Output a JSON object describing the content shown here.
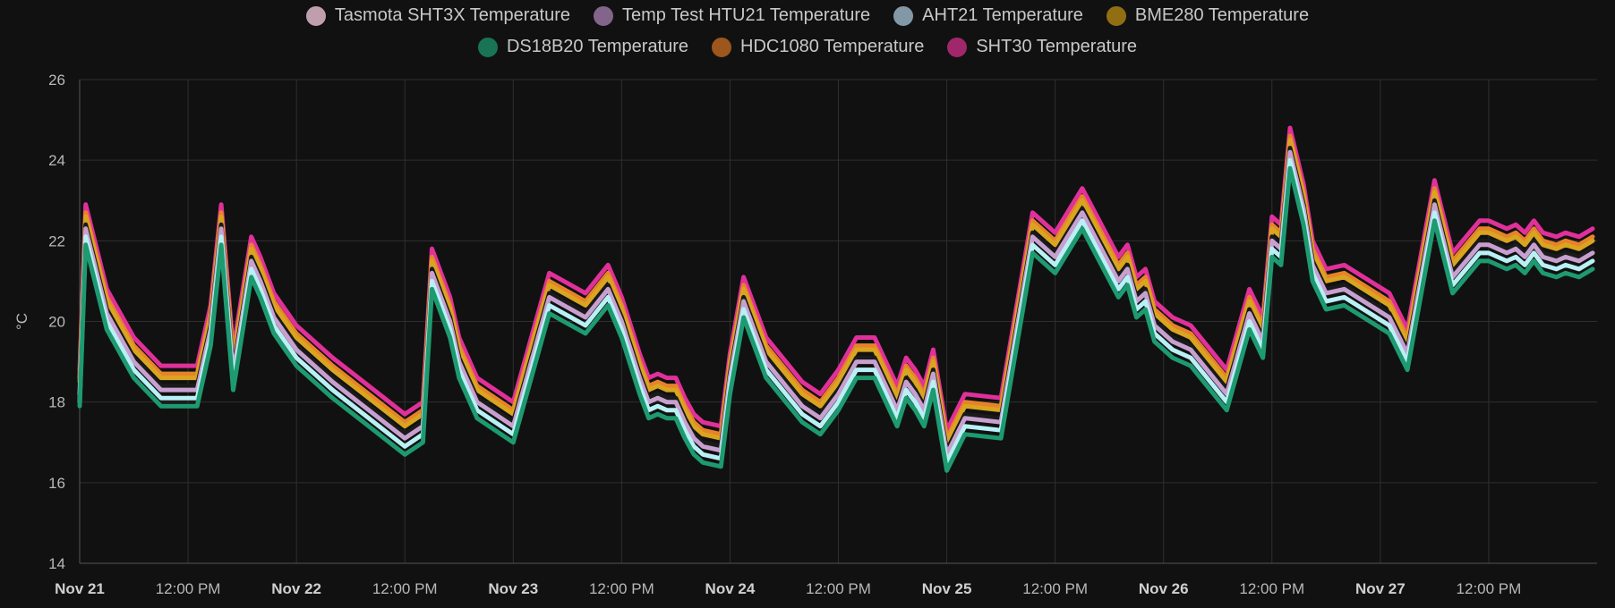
{
  "legend": [
    {
      "name": "Tasmota SHT3X Temperature",
      "color": "#c9a7b6"
    },
    {
      "name": "Temp Test HTU21 Temperature",
      "color": "#8a6a92"
    },
    {
      "name": "AHT21 Temperature",
      "color": "#8aa0b0"
    },
    {
      "name": "BME280 Temperature",
      "color": "#9a7414"
    },
    {
      "name": "DS18B20 Temperature",
      "color": "#1a7a5a"
    },
    {
      "name": "HDC1080 Temperature",
      "color": "#a55a1e"
    },
    {
      "name": "SHT30 Temperature",
      "color": "#a82a70"
    }
  ],
  "chart_data": {
    "type": "line",
    "title": "",
    "xlabel": "",
    "ylabel": "°C",
    "ylim": [
      14,
      26
    ],
    "yticks": [
      "26",
      "24",
      "22",
      "20",
      "18",
      "16",
      "14"
    ],
    "xlim": [
      "2023-11-21T00:00",
      "2023-11-28T00:00"
    ],
    "xticks": [
      {
        "label": "Nov 21",
        "t": "2023-11-21T00:00",
        "bold": true
      },
      {
        "label": "12:00 PM",
        "t": "2023-11-21T12:00",
        "bold": false
      },
      {
        "label": "Nov 22",
        "t": "2023-11-22T00:00",
        "bold": true
      },
      {
        "label": "12:00 PM",
        "t": "2023-11-22T12:00",
        "bold": false
      },
      {
        "label": "Nov 23",
        "t": "2023-11-23T00:00",
        "bold": true
      },
      {
        "label": "12:00 PM",
        "t": "2023-11-23T12:00",
        "bold": false
      },
      {
        "label": "Nov 24",
        "t": "2023-11-24T00:00",
        "bold": true
      },
      {
        "label": "12:00 PM",
        "t": "2023-11-24T12:00",
        "bold": false
      },
      {
        "label": "Nov 25",
        "t": "2023-11-25T00:00",
        "bold": true
      },
      {
        "label": "12:00 PM",
        "t": "2023-11-25T12:00",
        "bold": false
      },
      {
        "label": "Nov 26",
        "t": "2023-11-26T00:00",
        "bold": true
      },
      {
        "label": "12:00 PM",
        "t": "2023-11-26T12:00",
        "bold": false
      },
      {
        "label": "Nov 27",
        "t": "2023-11-27T00:00",
        "bold": true
      },
      {
        "label": "12:00 PM",
        "t": "2023-11-27T12:00",
        "bold": false
      }
    ],
    "grid": true,
    "legend_position": "top",
    "x": [
      "2023-11-21T00:00",
      "2023-11-21T00:40",
      "2023-11-21T03:00",
      "2023-11-21T06:00",
      "2023-11-21T09:00",
      "2023-11-21T13:00",
      "2023-11-21T14:30",
      "2023-11-21T15:40",
      "2023-11-21T17:00",
      "2023-11-21T19:00",
      "2023-11-21T20:00",
      "2023-11-21T21:30",
      "2023-11-22T00:00",
      "2023-11-22T04:00",
      "2023-11-22T08:00",
      "2023-11-22T12:00",
      "2023-11-22T14:00",
      "2023-11-22T15:00",
      "2023-11-22T17:00",
      "2023-11-22T18:00",
      "2023-11-22T20:00",
      "2023-11-23T00:00",
      "2023-11-23T04:00",
      "2023-11-23T08:00",
      "2023-11-23T10:30",
      "2023-11-23T12:00",
      "2023-11-23T14:00",
      "2023-11-23T15:00",
      "2023-11-23T16:00",
      "2023-11-23T17:00",
      "2023-11-23T18:00",
      "2023-11-23T19:00",
      "2023-11-23T20:00",
      "2023-11-23T21:00",
      "2023-11-23T23:00",
      "2023-11-24T00:00",
      "2023-11-24T01:30",
      "2023-11-24T04:00",
      "2023-11-24T08:00",
      "2023-11-24T10:00",
      "2023-11-24T12:00",
      "2023-11-24T14:00",
      "2023-11-24T16:00",
      "2023-11-24T18:30",
      "2023-11-24T19:30",
      "2023-11-24T20:30",
      "2023-11-24T21:30",
      "2023-11-24T22:30",
      "2023-11-25T00:00",
      "2023-11-25T02:00",
      "2023-11-25T06:00",
      "2023-11-25T09:30",
      "2023-11-25T12:00",
      "2023-11-25T15:00",
      "2023-11-25T19:00",
      "2023-11-25T20:00",
      "2023-11-25T21:00",
      "2023-11-25T22:00",
      "2023-11-25T23:00",
      "2023-11-26T01:00",
      "2023-11-26T03:00",
      "2023-11-26T07:00",
      "2023-11-26T09:30",
      "2023-11-26T11:00",
      "2023-11-26T12:00",
      "2023-11-26T13:00",
      "2023-11-26T14:00",
      "2023-11-26T15:30",
      "2023-11-26T16:30",
      "2023-11-26T18:00",
      "2023-11-26T20:00",
      "2023-11-27T01:00",
      "2023-11-27T03:00",
      "2023-11-27T06:00",
      "2023-11-27T08:00",
      "2023-11-27T11:00",
      "2023-11-27T12:00",
      "2023-11-27T13:00",
      "2023-11-27T14:00",
      "2023-11-27T15:00",
      "2023-11-27T16:00",
      "2023-11-27T17:00",
      "2023-11-27T18:00",
      "2023-11-27T19:30",
      "2023-11-27T20:30",
      "2023-11-27T22:00",
      "2023-11-27T23:30"
    ],
    "series": [
      {
        "name": "SHT30 Temperature",
        "values": [
          18.8,
          22.9,
          20.8,
          19.6,
          18.9,
          18.9,
          20.4,
          22.9,
          19.3,
          22.1,
          21.6,
          20.7,
          19.9,
          19.1,
          18.4,
          17.7,
          18.0,
          21.8,
          20.6,
          19.6,
          18.6,
          18.0,
          21.2,
          20.7,
          21.4,
          20.6,
          19.2,
          18.6,
          18.7,
          18.6,
          18.6,
          18.1,
          17.7,
          17.5,
          17.4,
          19.2,
          21.1,
          19.6,
          18.5,
          18.2,
          18.8,
          19.6,
          19.6,
          18.4,
          19.1,
          18.8,
          18.4,
          19.3,
          17.3,
          18.2,
          18.1,
          22.7,
          22.2,
          23.3,
          21.6,
          21.9,
          21.1,
          21.3,
          20.5,
          20.1,
          19.9,
          18.8,
          20.8,
          20.1,
          22.6,
          22.4,
          24.8,
          23.4,
          22.0,
          21.3,
          21.4,
          20.7,
          19.8,
          23.5,
          21.7,
          22.5,
          22.5,
          22.4,
          22.3,
          22.4,
          22.2,
          22.5,
          22.2,
          22.1,
          22.2,
          22.1,
          22.3
        ]
      },
      {
        "name": "HDC1080 Temperature",
        "values": [
          18.6,
          22.7,
          20.6,
          19.4,
          18.7,
          18.7,
          20.2,
          22.7,
          19.1,
          21.9,
          21.4,
          20.5,
          19.7,
          18.9,
          18.2,
          17.5,
          17.8,
          21.6,
          20.4,
          19.4,
          18.4,
          17.8,
          21.0,
          20.5,
          21.2,
          20.4,
          19.0,
          18.4,
          18.5,
          18.4,
          18.4,
          17.9,
          17.5,
          17.3,
          17.2,
          19.0,
          20.9,
          19.4,
          18.3,
          18.0,
          18.6,
          19.4,
          19.4,
          18.2,
          18.9,
          18.6,
          18.2,
          19.1,
          17.1,
          18.0,
          17.9,
          22.5,
          22.0,
          23.1,
          21.4,
          21.7,
          20.9,
          21.1,
          20.3,
          19.9,
          19.7,
          18.6,
          20.6,
          19.9,
          22.4,
          22.2,
          24.6,
          23.2,
          21.8,
          21.1,
          21.2,
          20.5,
          19.6,
          23.3,
          21.5,
          22.3,
          22.3,
          22.2,
          22.1,
          22.2,
          22.0,
          22.3,
          22.0,
          21.9,
          22.0,
          21.9,
          22.1
        ]
      },
      {
        "name": "BME280 Temperature",
        "values": [
          18.5,
          22.6,
          20.5,
          19.3,
          18.6,
          18.6,
          20.1,
          22.6,
          19.0,
          21.8,
          21.3,
          20.4,
          19.6,
          18.8,
          18.1,
          17.4,
          17.7,
          21.5,
          20.3,
          19.3,
          18.3,
          17.7,
          20.9,
          20.4,
          21.1,
          20.3,
          18.9,
          18.3,
          18.4,
          18.3,
          18.3,
          17.8,
          17.4,
          17.2,
          17.1,
          18.9,
          20.8,
          19.3,
          18.2,
          17.9,
          18.5,
          19.3,
          19.3,
          18.1,
          18.8,
          18.5,
          18.1,
          19.0,
          17.0,
          17.9,
          17.8,
          22.4,
          21.9,
          23.0,
          21.3,
          21.6,
          20.8,
          21.0,
          20.2,
          19.8,
          19.6,
          18.5,
          20.5,
          19.8,
          22.3,
          22.1,
          24.5,
          23.1,
          21.7,
          21.0,
          21.1,
          20.4,
          19.5,
          23.2,
          21.4,
          22.2,
          22.2,
          22.1,
          22.0,
          22.1,
          21.9,
          22.2,
          21.9,
          21.8,
          21.9,
          21.8,
          22.0
        ]
      },
      {
        "name": "Tasmota SHT3X Temperature",
        "values": [
          18.3,
          22.4,
          20.3,
          19.1,
          18.4,
          18.4,
          19.9,
          22.4,
          18.8,
          21.6,
          21.1,
          20.2,
          19.4,
          18.6,
          17.9,
          17.2,
          17.5,
          21.3,
          20.1,
          19.1,
          18.1,
          17.5,
          20.7,
          20.2,
          20.9,
          20.1,
          18.7,
          18.1,
          18.2,
          18.1,
          18.1,
          17.6,
          17.2,
          17.0,
          16.9,
          18.7,
          20.6,
          19.1,
          18.0,
          17.7,
          18.3,
          19.1,
          19.1,
          17.9,
          18.6,
          18.3,
          17.9,
          18.8,
          16.8,
          17.7,
          17.6,
          22.2,
          21.7,
          22.8,
          21.1,
          21.4,
          20.6,
          20.8,
          20.0,
          19.6,
          19.4,
          18.3,
          20.3,
          19.6,
          22.1,
          21.9,
          24.3,
          22.9,
          21.5,
          20.8,
          20.9,
          20.2,
          19.3,
          23.0,
          21.2,
          22.0,
          22.0,
          21.9,
          21.8,
          21.9,
          21.7,
          22.0,
          21.7,
          21.6,
          21.7,
          21.6,
          21.8
        ]
      },
      {
        "name": "Temp Test HTU21 Temperature",
        "values": [
          18.2,
          22.3,
          20.2,
          19.0,
          18.3,
          18.3,
          19.8,
          22.3,
          18.7,
          21.5,
          21.0,
          20.1,
          19.3,
          18.5,
          17.8,
          17.1,
          17.4,
          21.2,
          20.0,
          19.0,
          18.0,
          17.4,
          20.6,
          20.1,
          20.8,
          20.0,
          18.6,
          18.0,
          18.1,
          18.0,
          18.0,
          17.5,
          17.1,
          16.9,
          16.8,
          18.6,
          20.5,
          19.0,
          17.9,
          17.6,
          18.2,
          19.0,
          19.0,
          17.8,
          18.5,
          18.2,
          17.8,
          18.7,
          16.7,
          17.6,
          17.5,
          22.1,
          21.6,
          22.7,
          21.0,
          21.3,
          20.5,
          20.7,
          19.9,
          19.5,
          19.3,
          18.2,
          20.2,
          19.5,
          22.0,
          21.8,
          24.2,
          22.8,
          21.4,
          20.7,
          20.8,
          20.1,
          19.2,
          22.9,
          21.1,
          21.9,
          21.9,
          21.8,
          21.7,
          21.8,
          21.6,
          21.9,
          21.6,
          21.5,
          21.6,
          21.5,
          21.7
        ]
      },
      {
        "name": "AHT21 Temperature",
        "values": [
          18.0,
          22.1,
          20.0,
          18.8,
          18.1,
          18.1,
          19.6,
          22.1,
          18.5,
          21.3,
          20.8,
          19.9,
          19.1,
          18.3,
          17.6,
          16.9,
          17.2,
          21.0,
          19.8,
          18.8,
          17.8,
          17.2,
          20.4,
          19.9,
          20.6,
          19.8,
          18.4,
          17.8,
          17.9,
          17.8,
          17.8,
          17.3,
          16.9,
          16.7,
          16.6,
          18.4,
          20.3,
          18.8,
          17.7,
          17.4,
          18.0,
          18.8,
          18.8,
          17.6,
          18.3,
          18.0,
          17.6,
          18.5,
          16.5,
          17.4,
          17.3,
          21.9,
          21.4,
          22.5,
          20.8,
          21.1,
          20.3,
          20.5,
          19.7,
          19.3,
          19.1,
          18.0,
          20.0,
          19.3,
          21.8,
          21.6,
          24.0,
          22.6,
          21.2,
          20.5,
          20.6,
          19.9,
          19.0,
          22.7,
          20.9,
          21.7,
          21.7,
          21.6,
          21.5,
          21.6,
          21.4,
          21.7,
          21.4,
          21.3,
          21.4,
          21.3,
          21.5
        ]
      },
      {
        "name": "DS18B20 Temperature",
        "values": [
          17.9,
          21.9,
          19.8,
          18.6,
          17.9,
          17.9,
          19.4,
          21.9,
          18.3,
          21.1,
          20.6,
          19.7,
          18.9,
          18.1,
          17.4,
          16.7,
          17.0,
          20.8,
          19.6,
          18.6,
          17.6,
          17.0,
          20.2,
          19.7,
          20.4,
          19.6,
          18.2,
          17.6,
          17.7,
          17.6,
          17.6,
          17.1,
          16.7,
          16.5,
          16.4,
          18.2,
          20.1,
          18.6,
          17.5,
          17.2,
          17.8,
          18.6,
          18.6,
          17.4,
          18.1,
          17.8,
          17.4,
          18.3,
          16.3,
          17.2,
          17.1,
          21.7,
          21.2,
          22.3,
          20.6,
          20.9,
          20.1,
          20.3,
          19.5,
          19.1,
          18.9,
          17.8,
          19.8,
          19.1,
          21.6,
          21.4,
          23.8,
          22.4,
          21.0,
          20.3,
          20.4,
          19.7,
          18.8,
          22.5,
          20.7,
          21.5,
          21.5,
          21.4,
          21.3,
          21.4,
          21.2,
          21.5,
          21.2,
          21.1,
          21.2,
          21.1,
          21.3
        ]
      }
    ],
    "series_colors": {
      "SHT30 Temperature": "#e0309a",
      "HDC1080 Temperature": "#e8822a",
      "BME280 Temperature": "#d9a520",
      "Tasmota SHT3X Temperature": "#1a1a1a",
      "Temp Test HTU21 Temperature": "#c7a0d0",
      "AHT21 Temperature": "#b8f0f5",
      "DS18B20 Temperature": "#1e9a70"
    }
  }
}
